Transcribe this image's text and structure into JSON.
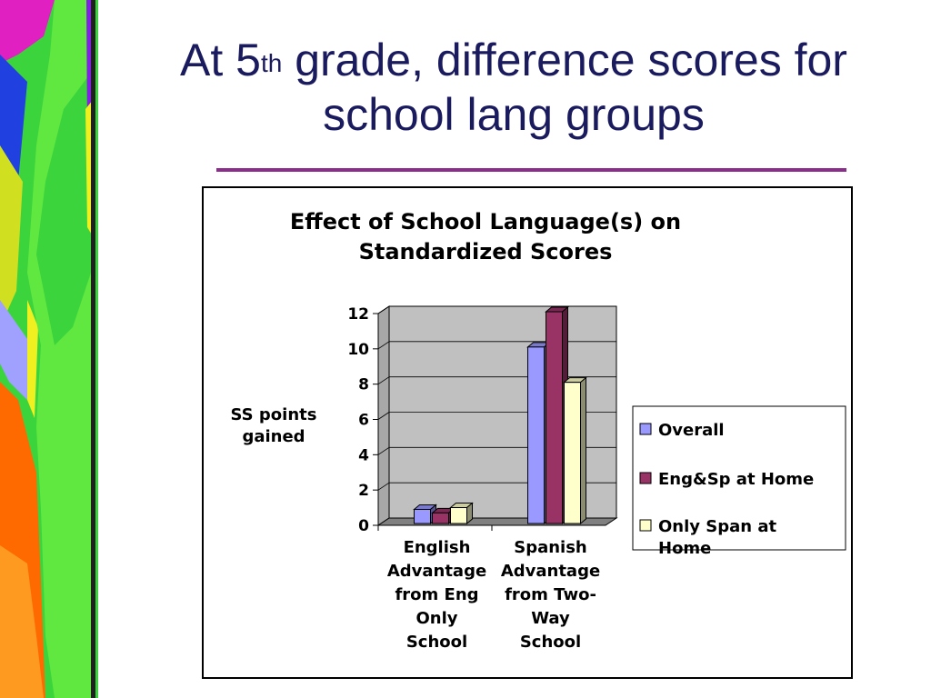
{
  "slide": {
    "title_prefix": "At 5",
    "title_sup": "th",
    "title_suffix": " grade, difference scores for school lang groups"
  },
  "colors": {
    "title_text": "#1a1a5e",
    "rule": "#8b2d8b",
    "plot_wall": "#c0c0c0",
    "floor": "#808080"
  },
  "chart_data": {
    "type": "bar",
    "title_lines": [
      "Effect of School Language(s) on",
      "Standardized Scores"
    ],
    "ylabel_lines": [
      "SS points",
      "gained"
    ],
    "ylim": [
      0,
      12
    ],
    "yticks": [
      "0",
      "2",
      "4",
      "6",
      "8",
      "10",
      "12"
    ],
    "grid": true,
    "legend_position": "right",
    "categories": [
      [
        "English",
        "Advantage",
        "from Eng",
        "Only",
        "School"
      ],
      [
        "Spanish",
        "Advantage",
        "from Two-",
        "Way",
        "School"
      ]
    ],
    "series": [
      {
        "name": "Overall",
        "values": [
          0.8,
          10
        ],
        "color": "#9999ff"
      },
      {
        "name": "Eng&Sp at Home",
        "values": [
          0.6,
          12
        ],
        "color": "#993366"
      },
      {
        "name": "Only Span at Home",
        "name_lines": [
          "Only Span at",
          "Home"
        ],
        "values": [
          0.9,
          8
        ],
        "color": "#ffffcc"
      }
    ]
  }
}
